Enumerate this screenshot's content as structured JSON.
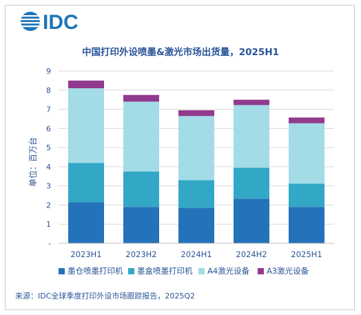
{
  "logo": {
    "text": "IDC",
    "color": "#1f75b8"
  },
  "source": "来源：IDC全球季度打印外设市场跟踪报告，2025Q2",
  "chart_data": {
    "type": "bar",
    "stacked": true,
    "title": "中国打印外设喷墨&激光市场出货量，2025H1",
    "ylabel": "单位：百万台",
    "xlabel": "",
    "ylim": [
      0,
      9
    ],
    "yticks": [
      "-",
      "1",
      "2",
      "3",
      "4",
      "5",
      "6",
      "7",
      "8",
      "9"
    ],
    "grid": true,
    "legend_position": "bottom",
    "categories": [
      "2023H1",
      "2023H2",
      "2024H1",
      "2024H2",
      "2025H1"
    ],
    "series": [
      {
        "name": "墨仓喷墨打印机",
        "color": "#2472b9",
        "values": [
          2.15,
          1.9,
          1.85,
          2.33,
          1.9
        ]
      },
      {
        "name": "墨盒喷墨打印机",
        "color": "#33a7c6",
        "values": [
          2.05,
          1.85,
          1.45,
          1.62,
          1.22
        ]
      },
      {
        "name": "A4激光设备",
        "color": "#a3dbe7",
        "values": [
          3.9,
          3.65,
          3.35,
          3.27,
          3.15
        ]
      },
      {
        "name": "A3激光设备",
        "color": "#913a8e",
        "values": [
          0.4,
          0.35,
          0.3,
          0.28,
          0.3
        ]
      }
    ]
  }
}
